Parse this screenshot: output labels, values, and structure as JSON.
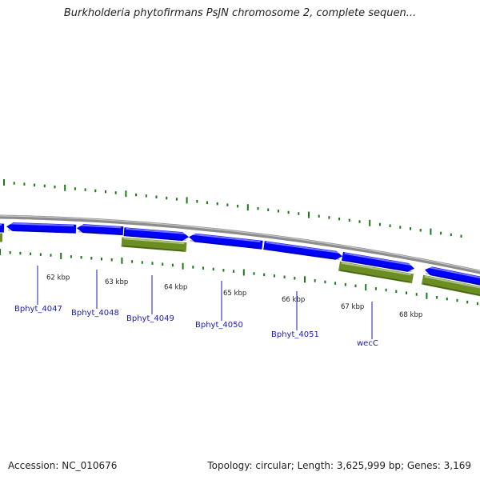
{
  "title": "Burkholderia phytofirmans PsJN chromosome 2, complete sequen...",
  "footer": {
    "accession": "Accession: NC_010676",
    "summary": "Topology: circular; Length: 3,625,999 bp; Genes: 3,169"
  },
  "colors": {
    "forward_gene": "#0000ff",
    "reverse_gene": "#6b8e23",
    "backbone": "#8c8c8c",
    "tick_green": "#1a7a1a",
    "gene_label": "#1a1ab4",
    "kbp_label": "#222222"
  },
  "scale_labels": [
    "62 kbp",
    "63 kbp",
    "64 kbp",
    "65 kbp",
    "66 kbp",
    "67 kbp",
    "68 kbp"
  ],
  "gene_labels": [
    "Bphyt_4047",
    "Bphyt_4048",
    "Bphyt_4049",
    "Bphyt_4050",
    "Bphyt_4051",
    "wecC"
  ]
}
